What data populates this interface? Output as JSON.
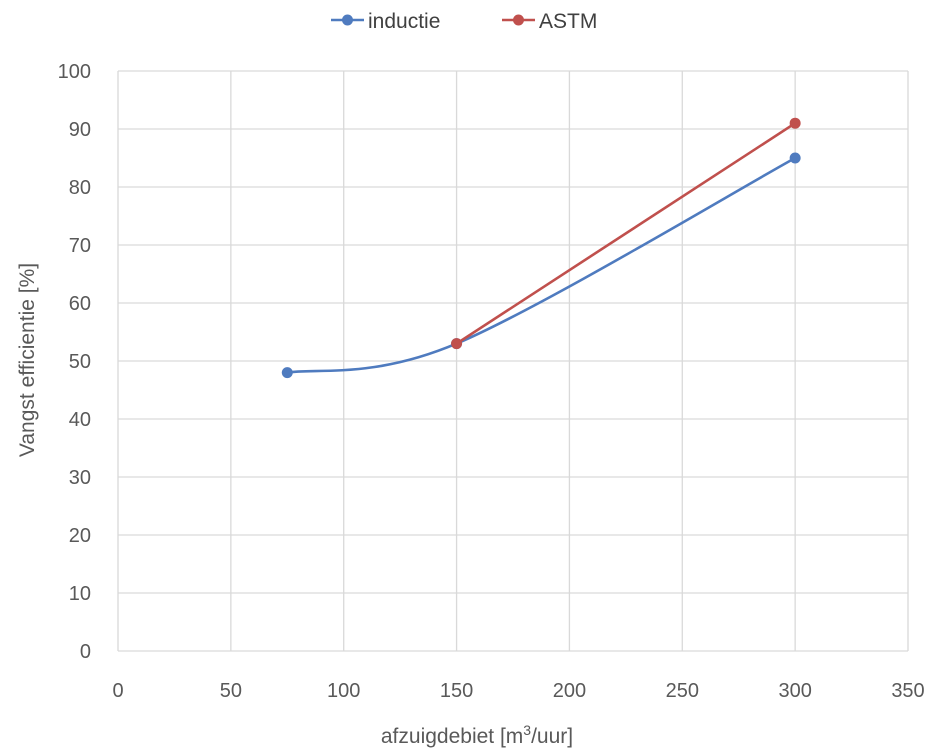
{
  "chart_data": {
    "type": "line",
    "title": "",
    "xlabel": "afzuigdebiet [m3/uur]",
    "xlabel_parts": {
      "before": "afzuigdebiet [m",
      "sup": "3",
      "after": "/uur]"
    },
    "ylabel": "Vangst efficientie [%]",
    "xlim": [
      0,
      350
    ],
    "ylim": [
      0,
      100
    ],
    "xticks": [
      0,
      50,
      100,
      150,
      200,
      250,
      300,
      350
    ],
    "yticks": [
      0,
      10,
      20,
      30,
      40,
      50,
      60,
      70,
      80,
      90,
      100
    ],
    "grid": true,
    "legend_position": "top-center",
    "series": [
      {
        "name": "inductie",
        "color": "#4f7bbf",
        "smooth": true,
        "x": [
          75,
          150,
          300
        ],
        "y": [
          48,
          53,
          85
        ]
      },
      {
        "name": "ASTM",
        "color": "#c0504d",
        "smooth": false,
        "x": [
          150,
          300
        ],
        "y": [
          53,
          91
        ]
      }
    ]
  }
}
